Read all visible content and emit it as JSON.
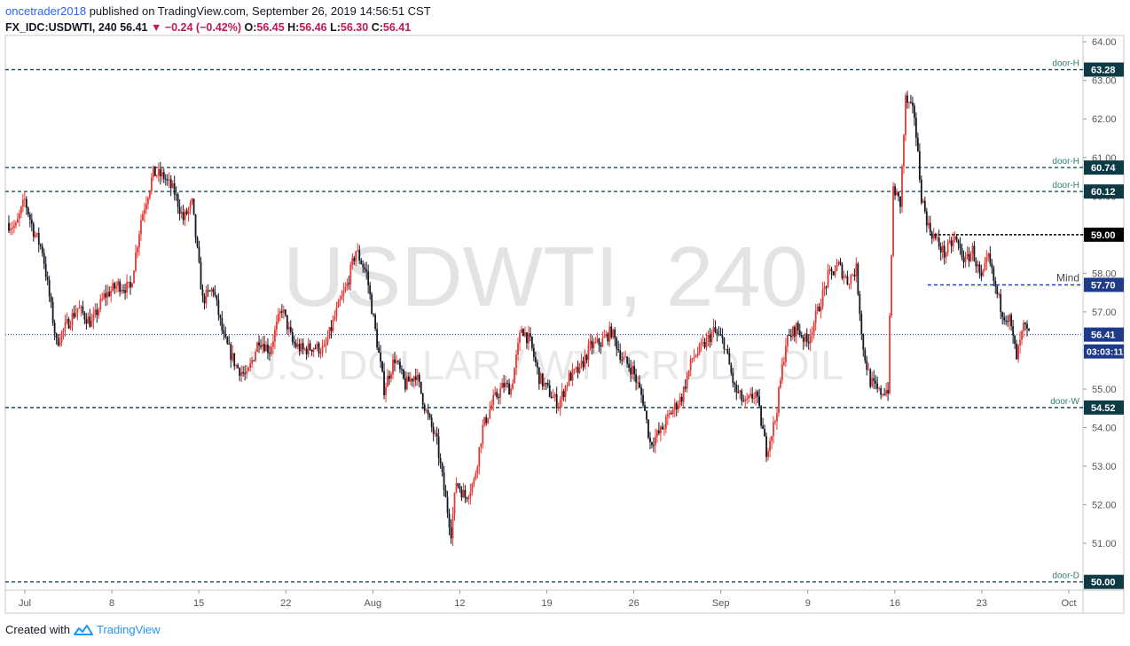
{
  "header": {
    "author": "oncetrader2018",
    "published": "published on TradingView.com, September 26, 2019 14:56:51 CST",
    "symbol": "FX_IDC:USDWTI, 240",
    "last": "56.41",
    "change": "−0.24 (−0.42%)",
    "o_label": "O:",
    "o_val": "56.45",
    "h_label": "H:",
    "h_val": "56.46",
    "l_label": "L:",
    "l_val": "56.30",
    "c_label": "C:",
    "c_val": "56.41"
  },
  "watermark": {
    "main": "USDWTI, 240",
    "sub": "U.S. DOLLAR / WTI CRUDE OIL"
  },
  "footer": {
    "created_with": "Created with",
    "brand": "TradingView"
  },
  "colors": {
    "up": "#e53935",
    "down": "#131722",
    "level_line": "#1b4f5c",
    "label_bg": "#0d3a45",
    "price_bg": "#1e3a8a",
    "mind_line": "#1e3cd6"
  },
  "chart_data": {
    "type": "candlestick",
    "title": "USDWTI, 240",
    "y_ticks": [
      51.0,
      52.0,
      53.0,
      54.0,
      55.0,
      56.0,
      57.0,
      58.0,
      59.0,
      60.0,
      61.0,
      62.0,
      63.0,
      64.0
    ],
    "ylim": [
      49.9,
      64.05
    ],
    "x_ticks": [
      "Jul",
      "8",
      "15",
      "22",
      "Aug",
      "12",
      "19",
      "26",
      "Sep",
      "9",
      "16",
      "23",
      "Oct"
    ],
    "levels": [
      {
        "price": 63.28,
        "label": "door-H",
        "value_label": "63.28"
      },
      {
        "price": 60.74,
        "label": "door-H",
        "value_label": "60.74"
      },
      {
        "price": 60.12,
        "label": "door-H",
        "value_label": "60.12"
      },
      {
        "price": 54.52,
        "label": "door-W",
        "value_label": "54.52"
      },
      {
        "price": 50.0,
        "label": "door-D",
        "value_label": "50.00"
      }
    ],
    "short_levels": [
      {
        "price": 59.0,
        "value_label": "59.00",
        "style": "black-dashed"
      },
      {
        "price": 57.7,
        "value_label": "57.70",
        "label": "Mind",
        "style": "blue-dashed"
      }
    ],
    "current_price": {
      "price": 56.41,
      "value_label": "56.41",
      "countdown": "03:03:11"
    },
    "anchors": [
      [
        0,
        59.3
      ],
      [
        5,
        59.2
      ],
      [
        10,
        59.9
      ],
      [
        15,
        59.1
      ],
      [
        20,
        58.6
      ],
      [
        28,
        56.2
      ],
      [
        33,
        56.6
      ],
      [
        40,
        57.1
      ],
      [
        48,
        56.7
      ],
      [
        55,
        57.4
      ],
      [
        63,
        57.7
      ],
      [
        70,
        57.6
      ],
      [
        76,
        59.4
      ],
      [
        83,
        60.6
      ],
      [
        89,
        60.5
      ],
      [
        95,
        60.1
      ],
      [
        100,
        59.4
      ],
      [
        105,
        59.8
      ],
      [
        111,
        57.3
      ],
      [
        117,
        57.6
      ],
      [
        123,
        56.3
      ],
      [
        130,
        55.6
      ],
      [
        136,
        55.3
      ],
      [
        143,
        56.3
      ],
      [
        149,
        56.0
      ],
      [
        156,
        57.1
      ],
      [
        162,
        56.2
      ],
      [
        168,
        56.0
      ],
      [
        174,
        56.1
      ],
      [
        180,
        56.0
      ],
      [
        187,
        57.0
      ],
      [
        193,
        57.7
      ],
      [
        198,
        58.6
      ],
      [
        204,
        58.0
      ],
      [
        209,
        56.5
      ],
      [
        214,
        55.0
      ],
      [
        220,
        55.8
      ],
      [
        226,
        55.1
      ],
      [
        232,
        55.4
      ],
      [
        238,
        54.4
      ],
      [
        244,
        53.6
      ],
      [
        248,
        52.4
      ],
      [
        252,
        51.3
      ],
      [
        255,
        52.6
      ],
      [
        260,
        52.2
      ],
      [
        265,
        52.6
      ],
      [
        270,
        54.0
      ],
      [
        276,
        54.7
      ],
      [
        282,
        55.1
      ],
      [
        286,
        55.0
      ],
      [
        292,
        56.6
      ],
      [
        297,
        56.2
      ],
      [
        302,
        55.3
      ],
      [
        308,
        54.9
      ],
      [
        313,
        54.6
      ],
      [
        319,
        55.3
      ],
      [
        325,
        55.5
      ],
      [
        331,
        56.1
      ],
      [
        337,
        56.2
      ],
      [
        343,
        56.5
      ],
      [
        349,
        55.8
      ],
      [
        355,
        55.5
      ],
      [
        361,
        54.7
      ],
      [
        365,
        53.6
      ],
      [
        371,
        53.9
      ],
      [
        377,
        54.4
      ],
      [
        383,
        54.8
      ],
      [
        389,
        55.8
      ],
      [
        395,
        56.1
      ],
      [
        401,
        56.5
      ],
      [
        407,
        56.2
      ],
      [
        413,
        55.0
      ],
      [
        419,
        54.6
      ],
      [
        425,
        54.9
      ],
      [
        431,
        53.4
      ],
      [
        436,
        54.2
      ],
      [
        442,
        56.2
      ],
      [
        448,
        56.6
      ],
      [
        454,
        56.2
      ],
      [
        460,
        57.0
      ],
      [
        466,
        57.9
      ],
      [
        472,
        58.2
      ],
      [
        477,
        57.8
      ],
      [
        482,
        58.1
      ],
      [
        486,
        56.0
      ],
      [
        490,
        55.2
      ],
      [
        495,
        54.9
      ],
      [
        500,
        55.0
      ],
      [
        503,
        60.2
      ],
      [
        507,
        59.8
      ],
      [
        510,
        62.5
      ],
      [
        515,
        62.1
      ],
      [
        519,
        60.0
      ],
      [
        523,
        59.2
      ],
      [
        528,
        58.8
      ],
      [
        532,
        58.5
      ],
      [
        538,
        58.9
      ],
      [
        544,
        58.3
      ],
      [
        548,
        58.6
      ],
      [
        553,
        57.8
      ],
      [
        557,
        58.4
      ],
      [
        561,
        57.6
      ],
      [
        565,
        57.0
      ],
      [
        569,
        56.8
      ],
      [
        573,
        55.8
      ],
      [
        577,
        56.6
      ],
      [
        580,
        56.41
      ]
    ]
  }
}
